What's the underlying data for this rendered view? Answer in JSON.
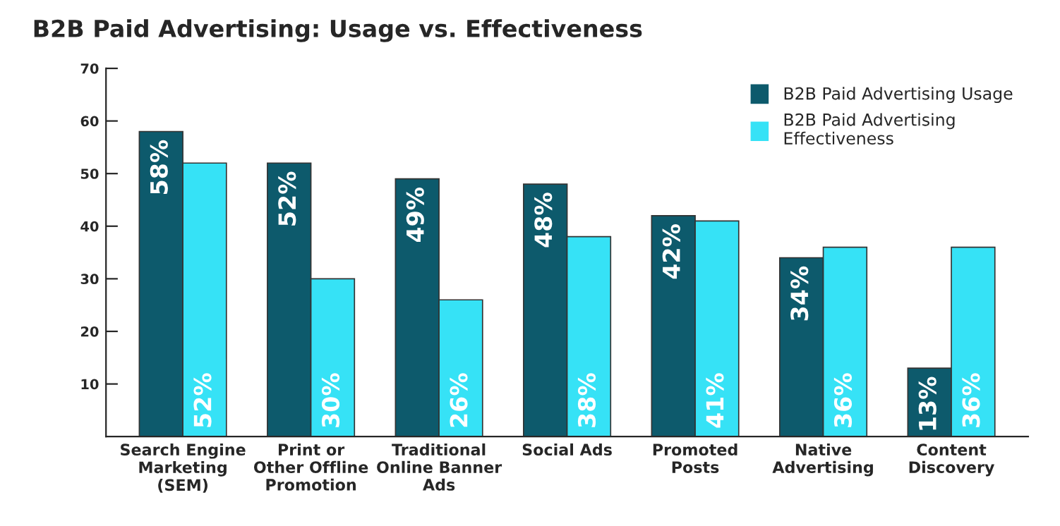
{
  "chart_data": {
    "type": "bar",
    "title": "B2B Paid Advertising: Usage vs. Effectiveness",
    "categories": [
      "Search Engine\nMarketing\n(SEM)",
      "Print or\nOther Offline\nPromotion",
      "Traditional\nOnline Banner\nAds",
      "Social Ads",
      "Promoted\nPosts",
      "Native\nAdvertising",
      "Content\nDiscovery"
    ],
    "series": [
      {
        "name": "B2B Paid Advertising Usage",
        "color": "#0d5a6c",
        "values": [
          58,
          52,
          49,
          48,
          42,
          34,
          13
        ],
        "value_labels": [
          "58%",
          "52%",
          "49%",
          "48%",
          "42%",
          "34%",
          "13%"
        ]
      },
      {
        "name": "B2B Paid Advertising\nEffectiveness",
        "color": "#36e2f6",
        "values": [
          52,
          30,
          26,
          38,
          41,
          36,
          36
        ],
        "value_labels": [
          "52%",
          "30%",
          "26%",
          "38%",
          "41%",
          "36%",
          "36%"
        ]
      }
    ],
    "ylim": [
      0,
      70
    ],
    "yticks": [
      10,
      20,
      30,
      40,
      50,
      60,
      70
    ],
    "grid": false,
    "legend": "top right"
  }
}
